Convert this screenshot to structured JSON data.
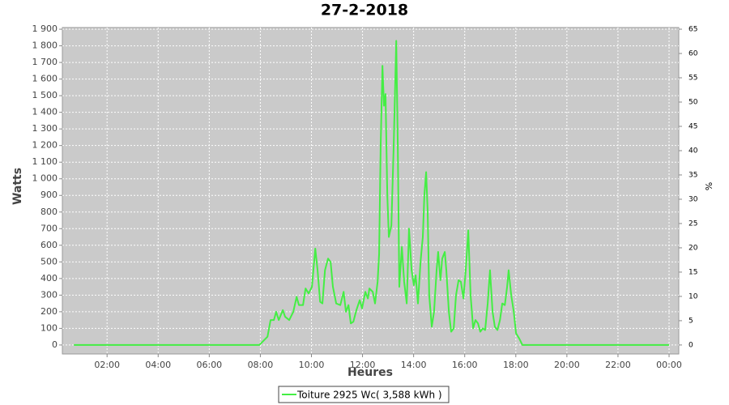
{
  "chart_data": {
    "type": "line",
    "title": "27-2-2018",
    "x_label": "Heures",
    "y_label": "Watts",
    "y2_label": "%",
    "x": [
      0.7,
      7.96,
      8.28,
      8.4,
      8.53,
      8.62,
      8.72,
      8.88,
      8.97,
      9.13,
      9.29,
      9.42,
      9.51,
      9.67,
      9.77,
      9.89,
      10.02,
      10.15,
      10.24,
      10.34,
      10.43,
      10.53,
      10.65,
      10.75,
      10.84,
      10.97,
      11.13,
      11.26,
      11.35,
      11.45,
      11.54,
      11.64,
      11.76,
      11.89,
      11.98,
      12.11,
      12.21,
      12.27,
      12.4,
      12.49,
      12.59,
      12.65,
      12.71,
      12.78,
      12.84,
      12.9,
      12.97,
      13.03,
      13.13,
      13.22,
      13.32,
      13.38,
      13.44,
      13.54,
      13.63,
      13.73,
      13.82,
      13.92,
      14.01,
      14.08,
      14.17,
      14.27,
      14.36,
      14.42,
      14.49,
      14.55,
      14.61,
      14.71,
      14.8,
      14.9,
      14.96,
      15.05,
      15.12,
      15.22,
      15.28,
      15.38,
      15.47,
      15.57,
      15.66,
      15.76,
      15.85,
      15.95,
      16.04,
      16.14,
      16.23,
      16.33,
      16.42,
      16.52,
      16.61,
      16.71,
      16.8,
      16.9,
      16.99,
      17.09,
      17.18,
      17.28,
      17.38,
      17.47,
      17.57,
      17.66,
      17.72,
      17.82,
      17.92,
      18.01,
      18.13,
      18.26,
      24.0
    ],
    "series": [
      {
        "name": "Toiture 2925 Wc( 3,588 kWh )",
        "color": "#44ee44",
        "values": [
          0,
          0,
          50,
          150,
          150,
          200,
          150,
          210,
          170,
          150,
          200,
          290,
          240,
          240,
          340,
          310,
          350,
          580,
          450,
          260,
          250,
          450,
          520,
          500,
          350,
          250,
          240,
          320,
          200,
          240,
          130,
          140,
          210,
          270,
          220,
          320,
          280,
          340,
          320,
          250,
          380,
          550,
          1200,
          1680,
          1440,
          1510,
          900,
          650,
          720,
          1200,
          1830,
          1200,
          350,
          590,
          380,
          250,
          700,
          450,
          360,
          420,
          250,
          500,
          650,
          900,
          1040,
          800,
          300,
          110,
          200,
          450,
          560,
          390,
          520,
          560,
          450,
          200,
          80,
          100,
          300,
          390,
          380,
          280,
          450,
          690,
          300,
          100,
          150,
          130,
          80,
          100,
          90,
          250,
          450,
          200,
          110,
          90,
          150,
          250,
          240,
          350,
          450,
          300,
          200,
          70,
          40,
          0,
          0
        ]
      }
    ],
    "xlim": [
      0.25,
      24.38
    ],
    "xticks": [
      {
        "value": 2,
        "label": "02:00"
      },
      {
        "value": 4,
        "label": "04:00"
      },
      {
        "value": 6,
        "label": "06:00"
      },
      {
        "value": 8,
        "label": "08:00"
      },
      {
        "value": 10,
        "label": "10:00"
      },
      {
        "value": 12,
        "label": "12:00"
      },
      {
        "value": 14,
        "label": "14:00"
      },
      {
        "value": 16,
        "label": "16:00"
      },
      {
        "value": 18,
        "label": "18:00"
      },
      {
        "value": 20,
        "label": "20:00"
      },
      {
        "value": 22,
        "label": "22:00"
      },
      {
        "value": 24,
        "label": "00:00"
      }
    ],
    "ylim": [
      -54,
      1910
    ],
    "yticks": [
      0,
      100,
      200,
      300,
      400,
      500,
      600,
      700,
      800,
      900,
      {
        "value": 1000,
        "label": "1 000"
      },
      {
        "value": 1100,
        "label": "1 100"
      },
      {
        "value": 1200,
        "label": "1 200"
      },
      {
        "value": 1300,
        "label": "1 300"
      },
      {
        "value": 1400,
        "label": "1 400"
      },
      {
        "value": 1500,
        "label": "1 500"
      },
      {
        "value": 1600,
        "label": "1 600"
      },
      {
        "value": 1700,
        "label": "1 700"
      },
      {
        "value": 1800,
        "label": "1 800"
      },
      {
        "value": 1900,
        "label": "1 900"
      }
    ],
    "y2lim": [
      -1.85,
      65.34
    ],
    "y2ticks": [
      0,
      5,
      10,
      15,
      20,
      25,
      30,
      35,
      40,
      45,
      50,
      55,
      60,
      65
    ],
    "grid": true
  }
}
